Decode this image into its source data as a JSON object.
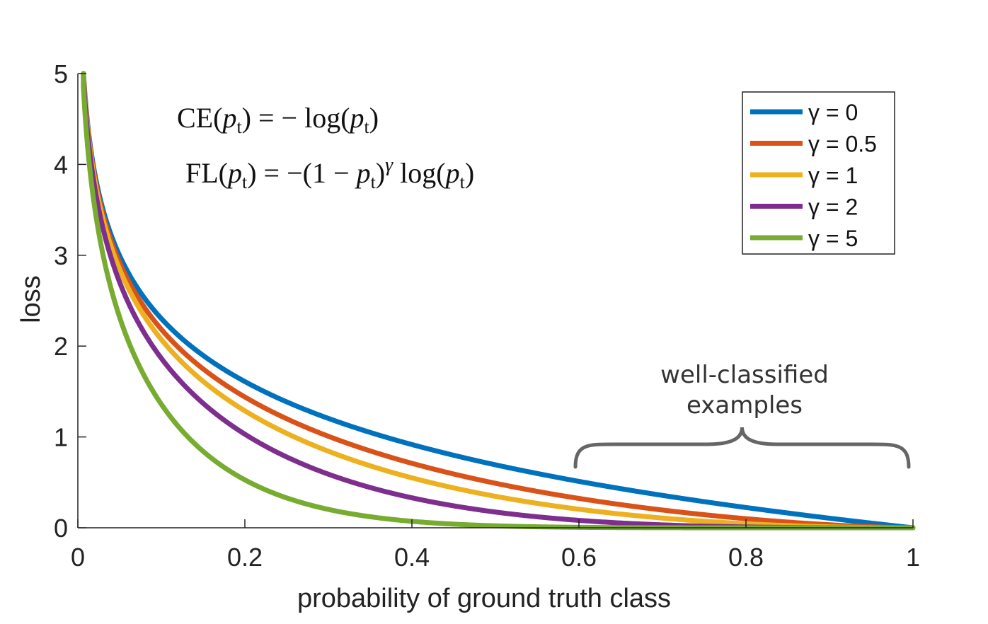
{
  "chart_data": {
    "type": "line",
    "xlabel": "probability of ground truth class",
    "ylabel": "loss",
    "xlim": [
      0,
      1
    ],
    "ylim": [
      0,
      5
    ],
    "x_ticks": [
      "0",
      "0.2",
      "0.4",
      "0.6",
      "0.8",
      "1"
    ],
    "y_ticks": [
      "0",
      "1",
      "2",
      "3",
      "4",
      "5"
    ],
    "grid": false,
    "legend_position": "top-right",
    "formulas": [
      "CE(pt) = − log(pt)",
      "FL(pt) = −(1 − pt)^γ log(pt)"
    ],
    "annotation": {
      "line1": "well-classified",
      "line2": "examples",
      "x_range": [
        0.6,
        1.0
      ]
    },
    "series": [
      {
        "name": "γ = 0",
        "gamma": 0,
        "color": "#0072BD"
      },
      {
        "name": "γ = 0.5",
        "gamma": 0.5,
        "color": "#D95319"
      },
      {
        "name": "γ = 1",
        "gamma": 1,
        "color": "#EDB120"
      },
      {
        "name": "γ = 2",
        "gamma": 2,
        "color": "#7E2F8E"
      },
      {
        "name": "γ = 5",
        "gamma": 5,
        "color": "#77AC30"
      }
    ],
    "function": "loss = -(1 - p)^gamma * ln(p)"
  }
}
